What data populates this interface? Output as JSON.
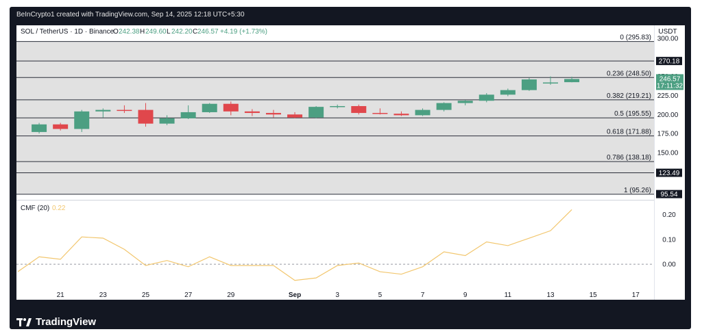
{
  "header": {
    "attribution": "BeInCrypto1 created with TradingView.com, Sep 14, 2025 12:18 UTC+5:30"
  },
  "legend": {
    "symbol": "SOL / TetherUS · 1D · Binance",
    "o_label": "O",
    "o": "242.38",
    "h_label": "H",
    "h": "249.60",
    "l_label": "L",
    "l": "242.20",
    "c_label": "C",
    "c": "246.57",
    "change": "+4.19 (+1.73%)"
  },
  "price_axis": {
    "currency": "USDT",
    "ticks": [
      "300.00",
      "250.00",
      "225.00",
      "200.00",
      "175.00",
      "150.00"
    ]
  },
  "price_tags": {
    "last": "246.57",
    "countdown": "17:11:32",
    "level_270": "270.18",
    "level_123": "123.49",
    "level_95": "95.54"
  },
  "fib_labels": [
    "0 (295.83)",
    "0.236 (248.50)",
    "0.382 (219.21)",
    "0.5 (195.55)",
    "0.618 (171.88)",
    "0.786 (138.18)",
    "1 (95.26)"
  ],
  "cmf": {
    "title": "CMF (20)",
    "value": "0.22",
    "ticks": [
      "0.20",
      "0.10",
      "0.00"
    ]
  },
  "x_ticks": [
    "21",
    "23",
    "25",
    "27",
    "29",
    "Sep",
    "3",
    "5",
    "7",
    "9",
    "11",
    "13",
    "15",
    "17"
  ],
  "colors": {
    "up": "#4c9f82",
    "down": "#e0474c",
    "cmf_line": "#f2c66d",
    "fib_zone": "#e1e1e1",
    "frame": "#131722"
  },
  "branding": {
    "logo_text": "TradingView"
  },
  "chart_data": [
    {
      "type": "candlestick",
      "title": "SOL / TetherUS · 1D · Binance",
      "ylabel": "USDT",
      "ylim": [
        88,
        317
      ],
      "x": [
        "Aug 20",
        "Aug 21",
        "Aug 22",
        "Aug 23",
        "Aug 24",
        "Aug 25",
        "Aug 26",
        "Aug 27",
        "Aug 28",
        "Aug 29",
        "Aug 30",
        "Aug 31",
        "Sep 1",
        "Sep 2",
        "Sep 3",
        "Sep 4",
        "Sep 5",
        "Sep 6",
        "Sep 7",
        "Sep 8",
        "Sep 9",
        "Sep 10",
        "Sep 11",
        "Sep 12",
        "Sep 13",
        "Sep 14"
      ],
      "series": [
        {
          "open": 177,
          "high": 189,
          "low": 175,
          "close": 187
        },
        {
          "open": 187,
          "high": 189,
          "low": 179,
          "close": 181
        },
        {
          "open": 181,
          "high": 206,
          "low": 177,
          "close": 204
        },
        {
          "open": 204,
          "high": 208,
          "low": 196,
          "close": 206
        },
        {
          "open": 206,
          "high": 212,
          "low": 202,
          "close": 205
        },
        {
          "open": 206,
          "high": 215,
          "low": 184,
          "close": 188
        },
        {
          "open": 188,
          "high": 199,
          "low": 186,
          "close": 195
        },
        {
          "open": 195,
          "high": 212,
          "low": 194,
          "close": 203
        },
        {
          "open": 203,
          "high": 215,
          "low": 202,
          "close": 214
        },
        {
          "open": 214,
          "high": 217,
          "low": 199,
          "close": 204
        },
        {
          "open": 204,
          "high": 207,
          "low": 198,
          "close": 202
        },
        {
          "open": 202,
          "high": 206,
          "low": 196,
          "close": 200
        },
        {
          "open": 200,
          "high": 203,
          "low": 195,
          "close": 196
        },
        {
          "open": 196,
          "high": 211,
          "low": 195,
          "close": 210
        },
        {
          "open": 210,
          "high": 213,
          "low": 208,
          "close": 211
        },
        {
          "open": 211,
          "high": 213,
          "low": 200,
          "close": 202
        },
        {
          "open": 202,
          "high": 208,
          "low": 200,
          "close": 201
        },
        {
          "open": 201,
          "high": 204,
          "low": 198,
          "close": 199
        },
        {
          "open": 199,
          "high": 208,
          "low": 198,
          "close": 206
        },
        {
          "open": 206,
          "high": 216,
          "low": 204,
          "close": 215
        },
        {
          "open": 215,
          "high": 219,
          "low": 212,
          "close": 218
        },
        {
          "open": 218,
          "high": 228,
          "low": 216,
          "close": 226
        },
        {
          "open": 226,
          "high": 234,
          "low": 224,
          "close": 232
        },
        {
          "open": 232,
          "high": 248,
          "low": 231,
          "close": 246
        },
        {
          "open": 242,
          "high": 250,
          "low": 239,
          "close": 242
        },
        {
          "open": 242.38,
          "high": 249.6,
          "low": 242.2,
          "close": 246.57
        }
      ],
      "fib_levels": [
        {
          "ratio": 0,
          "price": 295.83
        },
        {
          "ratio": 0.236,
          "price": 248.5
        },
        {
          "ratio": 0.382,
          "price": 219.21
        },
        {
          "ratio": 0.5,
          "price": 195.55
        },
        {
          "ratio": 0.618,
          "price": 171.88
        },
        {
          "ratio": 0.786,
          "price": 138.18
        },
        {
          "ratio": 1,
          "price": 95.26
        }
      ],
      "marked_levels": [
        270.18,
        123.49,
        95.54
      ],
      "grid": false
    },
    {
      "type": "line",
      "title": "CMF (20)",
      "x": [
        "Aug 19",
        "Aug 20",
        "Aug 21",
        "Aug 22",
        "Aug 23",
        "Aug 24",
        "Aug 25",
        "Aug 26",
        "Aug 27",
        "Aug 28",
        "Aug 29",
        "Aug 30",
        "Aug 31",
        "Sep 1",
        "Sep 2",
        "Sep 3",
        "Sep 4",
        "Sep 5",
        "Sep 6",
        "Sep 7",
        "Sep 8",
        "Sep 9",
        "Sep 10",
        "Sep 11",
        "Sep 12",
        "Sep 13",
        "Sep 14"
      ],
      "values": [
        -0.03,
        0.03,
        0.02,
        0.11,
        0.105,
        0.06,
        -0.005,
        0.015,
        -0.01,
        0.03,
        -0.005,
        -0.005,
        -0.005,
        -0.065,
        -0.055,
        -0.005,
        0.005,
        -0.03,
        -0.04,
        -0.01,
        0.05,
        0.035,
        0.09,
        0.075,
        0.105,
        0.135,
        0.22
      ],
      "ylim": [
        -0.14,
        0.24
      ],
      "baseline": 0.0
    }
  ]
}
